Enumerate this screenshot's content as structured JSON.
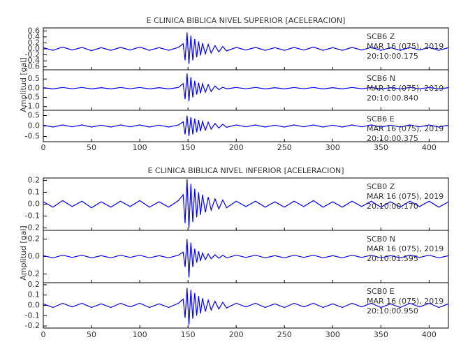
{
  "chart_data": [
    {
      "type": "line",
      "title": "E CLINICA BIBLICA NIVEL SUPERIOR [ACELERACION]",
      "y_label": "Amplitud [gal]",
      "xlim": [
        0,
        420
      ],
      "xticks": [
        0,
        50,
        100,
        150,
        200,
        250,
        300,
        350,
        400
      ],
      "x": [
        0,
        10,
        20,
        30,
        40,
        50,
        60,
        70,
        80,
        90,
        100,
        110,
        120,
        130,
        140,
        145,
        147,
        149,
        151,
        153,
        155,
        157,
        159,
        161,
        163,
        165,
        168,
        171,
        174,
        178,
        182,
        186,
        190,
        200,
        210,
        220,
        230,
        240,
        250,
        260,
        270,
        280,
        290,
        300,
        310,
        320,
        330,
        340,
        350,
        360,
        370,
        380,
        390,
        400,
        410,
        420
      ],
      "series": [
        {
          "name": "SCB6  Z",
          "date": "MAR 16 (075), 2019",
          "time": "20:10:00.175",
          "color": "#0000ff",
          "ylim": [
            -0.7,
            0.7
          ],
          "yticks": [
            0.6,
            0.4,
            0.2,
            {
              "value": 0,
              "label": "0.0"
            },
            -0.2,
            -0.4,
            -0.6
          ],
          "values": [
            0.04,
            -0.05,
            0.06,
            -0.04,
            0.05,
            -0.06,
            0.04,
            -0.05,
            0.05,
            -0.04,
            0.06,
            -0.05,
            0.04,
            -0.05,
            0.05,
            0.17,
            -0.38,
            0.55,
            -0.5,
            0.44,
            -0.38,
            0.33,
            -0.28,
            0.25,
            -0.22,
            0.19,
            -0.17,
            0.15,
            -0.14,
            0.11,
            -0.1,
            0.08,
            -0.07,
            0.05,
            -0.04,
            0.05,
            -0.05,
            0.04,
            -0.05,
            0.05,
            -0.04,
            0.06,
            -0.05,
            0.04,
            -0.05,
            0.05,
            -0.04,
            0.05,
            -0.05,
            0.04,
            -0.05,
            0.05,
            -0.04,
            0.05,
            -0.05,
            0.04
          ]
        },
        {
          "name": "SCB6  N",
          "date": "MAR 16 (075), 2019",
          "time": "20:10:00.840",
          "color": "#0000ff",
          "ylim": [
            -1.2,
            1.0
          ],
          "yticks": [
            0.5,
            {
              "value": 0,
              "label": "0.0"
            },
            -0.5,
            {
              "value": -1,
              "label": "-1.0"
            }
          ],
          "values": [
            0.03,
            -0.04,
            0.04,
            -0.03,
            0.04,
            -0.04,
            0.03,
            -0.04,
            0.04,
            -0.03,
            0.04,
            -0.04,
            0.03,
            -0.04,
            0.04,
            0.25,
            -0.6,
            0.8,
            -0.7,
            0.6,
            -0.5,
            0.4,
            -0.35,
            0.3,
            -0.28,
            0.25,
            -0.22,
            0.2,
            -0.18,
            0.12,
            -0.08,
            0.05,
            -0.04,
            0.04,
            -0.03,
            0.04,
            -0.04,
            0.03,
            -0.04,
            0.04,
            -0.03,
            0.04,
            -0.04,
            0.03,
            -0.04,
            0.04,
            -0.03,
            0.04,
            -0.04,
            0.03,
            -0.04,
            0.04,
            -0.03,
            0.04,
            -0.04,
            0.03
          ]
        },
        {
          "name": "SCB6  E",
          "date": "MAR 16 (075), 2019",
          "time": "20:10:00.375",
          "color": "#0000ff",
          "ylim": [
            -0.75,
            0.75
          ],
          "yticks": [
            0.5,
            {
              "value": 0,
              "label": "0.0"
            },
            -0.5
          ],
          "values": [
            0.04,
            -0.05,
            0.05,
            -0.04,
            0.05,
            -0.05,
            0.04,
            -0.05,
            0.05,
            -0.04,
            0.05,
            -0.05,
            0.04,
            -0.05,
            0.05,
            0.2,
            -0.4,
            0.5,
            -0.48,
            0.42,
            -0.4,
            0.35,
            -0.3,
            0.28,
            -0.25,
            0.22,
            -0.2,
            0.18,
            -0.15,
            0.12,
            -0.1,
            0.08,
            -0.06,
            0.05,
            -0.04,
            0.05,
            -0.05,
            0.04,
            -0.05,
            0.05,
            -0.04,
            0.05,
            -0.05,
            0.04,
            -0.05,
            0.05,
            -0.04,
            0.05,
            -0.05,
            0.04,
            -0.05,
            0.05,
            -0.04,
            0.05,
            -0.05,
            0.04
          ]
        }
      ]
    },
    {
      "type": "line",
      "title": "E CLINICA BIBLICA NIVEL INFERIOR [ACELERACION]",
      "y_label": "Amplitud [gal]",
      "xlim": [
        0,
        420
      ],
      "xticks": [
        0,
        50,
        100,
        150,
        200,
        250,
        300,
        350,
        400
      ],
      "x": [
        0,
        10,
        20,
        30,
        40,
        50,
        60,
        70,
        80,
        90,
        100,
        110,
        120,
        130,
        140,
        145,
        147,
        149,
        151,
        153,
        155,
        157,
        159,
        161,
        163,
        165,
        168,
        171,
        174,
        178,
        182,
        186,
        190,
        200,
        210,
        220,
        230,
        240,
        250,
        260,
        270,
        280,
        290,
        300,
        310,
        320,
        330,
        340,
        350,
        360,
        370,
        380,
        390,
        400,
        410,
        420
      ],
      "series": [
        {
          "name": "SCB0  Z",
          "date": "MAR 16 (075), 2019",
          "time": "20:10:00.170",
          "color": "#0000ff",
          "ylim": [
            -0.22,
            0.22
          ],
          "yticks": [
            0.2,
            0.1,
            {
              "value": 0,
              "label": "0.0"
            },
            -0.1,
            -0.2
          ],
          "values": [
            0.02,
            -0.025,
            0.03,
            -0.02,
            0.025,
            -0.03,
            0.02,
            -0.025,
            0.025,
            -0.02,
            0.03,
            -0.025,
            0.02,
            -0.025,
            0.03,
            0.08,
            -0.16,
            0.21,
            -0.2,
            0.17,
            -0.15,
            0.13,
            -0.11,
            0.1,
            -0.09,
            0.08,
            -0.07,
            0.06,
            -0.05,
            0.045,
            -0.04,
            0.035,
            -0.03,
            0.025,
            -0.02,
            0.025,
            -0.025,
            0.02,
            -0.025,
            0.025,
            -0.02,
            0.03,
            -0.025,
            0.02,
            -0.025,
            0.025,
            -0.02,
            0.025,
            -0.025,
            0.02,
            -0.025,
            0.025,
            -0.02,
            0.025,
            -0.025,
            0.02
          ]
        },
        {
          "name": "SCB0  N",
          "date": "MAR 16 (075), 2019",
          "time": "20:10:01.595",
          "color": "#0000ff",
          "ylim": [
            -0.3,
            0.3
          ],
          "yticks": [
            0.2,
            {
              "value": 0,
              "label": "0.0"
            },
            -0.2
          ],
          "values": [
            0.01,
            -0.015,
            0.015,
            -0.01,
            0.015,
            -0.015,
            0.01,
            -0.015,
            0.015,
            -0.01,
            0.015,
            -0.015,
            0.01,
            -0.015,
            0.015,
            0.05,
            -0.12,
            0.2,
            -0.24,
            0.16,
            -0.12,
            0.09,
            -0.07,
            0.06,
            -0.05,
            0.04,
            -0.035,
            0.03,
            -0.025,
            0.02,
            -0.02,
            0.015,
            -0.015,
            0.015,
            -0.01,
            0.015,
            -0.015,
            0.01,
            -0.015,
            0.015,
            -0.01,
            0.015,
            -0.015,
            0.01,
            -0.015,
            0.015,
            -0.01,
            0.015,
            -0.015,
            0.01,
            -0.015,
            0.015,
            -0.01,
            0.015,
            -0.015,
            0.01
          ]
        },
        {
          "name": "SCB0  E",
          "date": "MAR 16 (075), 2019",
          "time": "20:10:00.950",
          "color": "#0000ff",
          "ylim": [
            -0.22,
            0.22
          ],
          "yticks": [
            0.2,
            0.1,
            {
              "value": 0,
              "label": "0.0"
            },
            -0.1,
            -0.2
          ],
          "values": [
            0.015,
            -0.02,
            0.02,
            -0.015,
            0.02,
            -0.02,
            0.015,
            -0.02,
            0.02,
            -0.015,
            0.02,
            -0.02,
            0.015,
            -0.02,
            0.02,
            0.06,
            -0.12,
            0.17,
            -0.19,
            0.15,
            -0.13,
            0.12,
            -0.1,
            0.09,
            -0.08,
            0.07,
            -0.06,
            0.05,
            -0.045,
            0.04,
            -0.035,
            0.03,
            -0.025,
            0.02,
            -0.015,
            0.02,
            -0.02,
            0.015,
            -0.02,
            0.02,
            -0.015,
            0.02,
            -0.02,
            0.015,
            -0.02,
            0.02,
            -0.015,
            0.02,
            -0.02,
            0.015,
            -0.02,
            0.02,
            -0.015,
            0.02,
            -0.02,
            0.015
          ]
        }
      ]
    }
  ]
}
